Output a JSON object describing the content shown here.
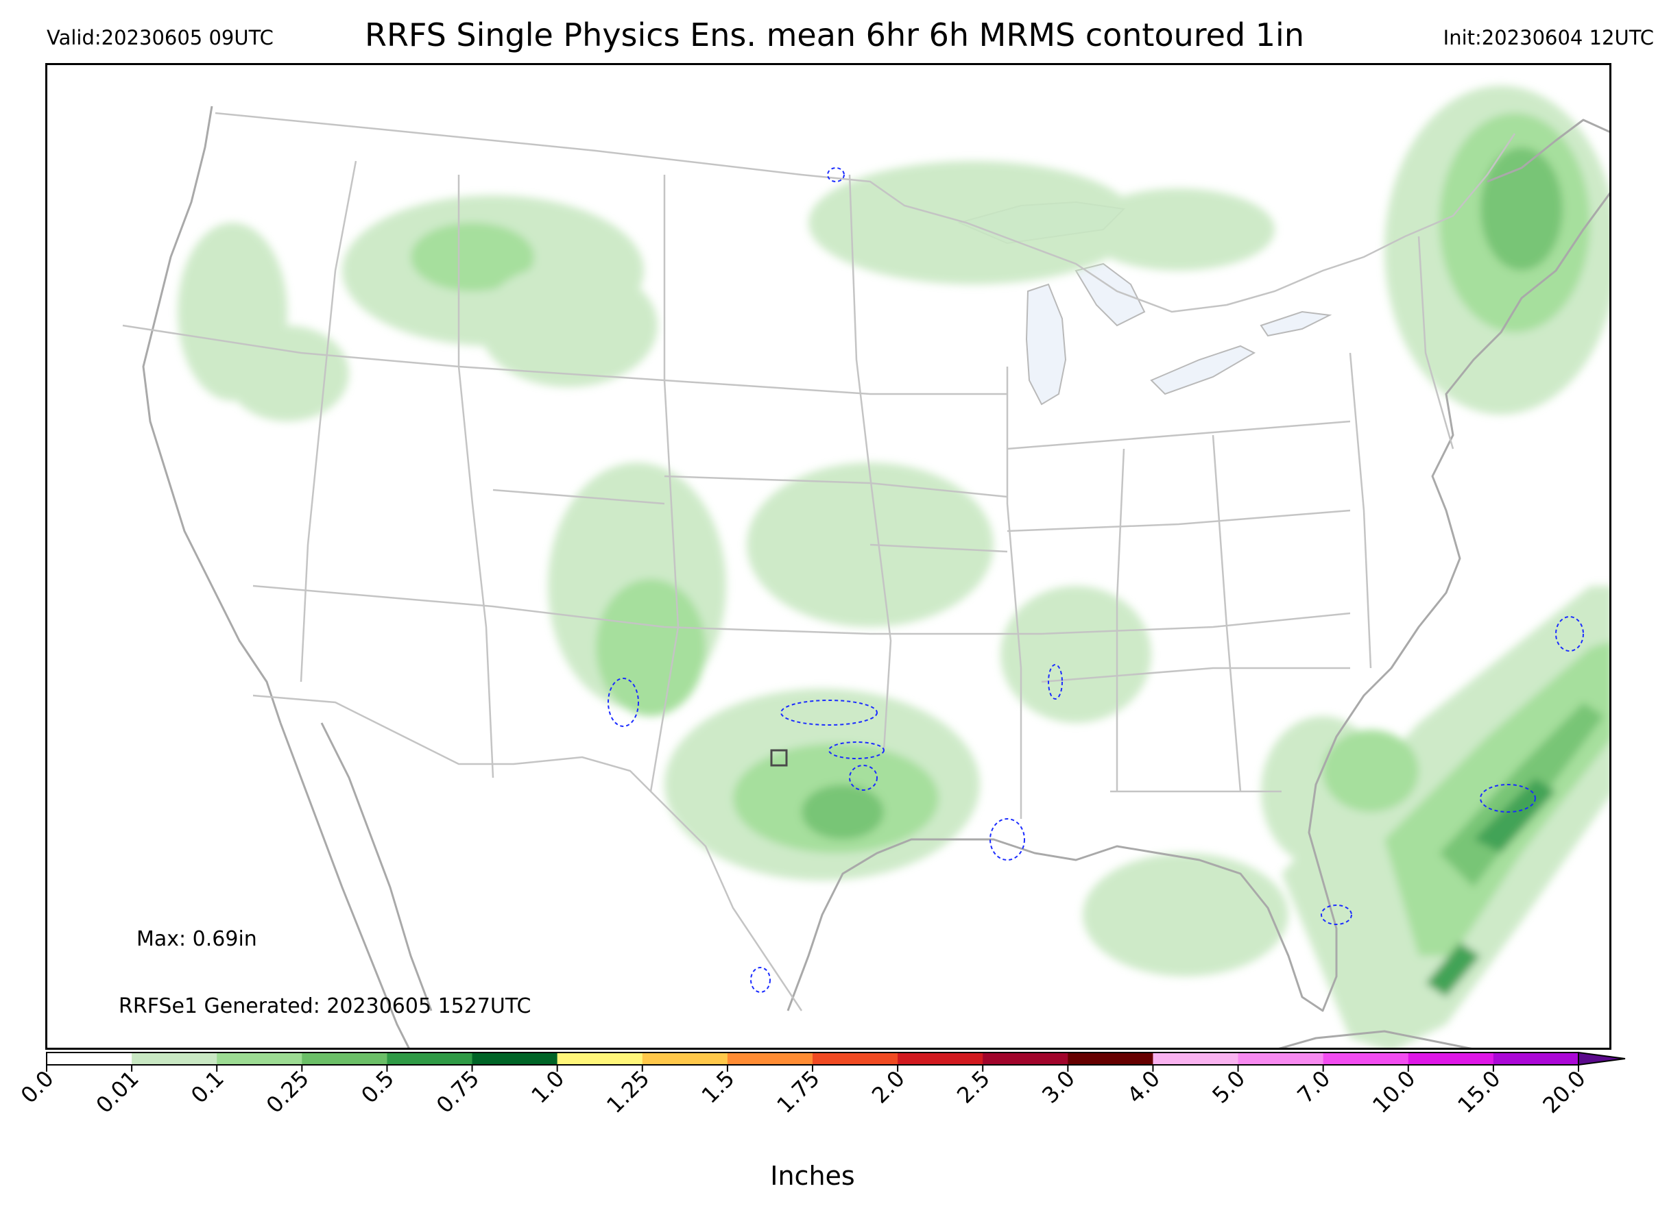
{
  "header": {
    "valid_label": "Valid:20230605 09UTC",
    "title": "RRFS Single Physics Ens. mean 6hr 6h MRMS contoured 1in",
    "init_label": "Init:20230604 12UTC"
  },
  "annotations": {
    "max_label": "Max: 0.69in",
    "generated_label": "RRFSe1 Generated: 20230605 1527UTC"
  },
  "colorbar": {
    "title": "Inches",
    "ticks": [
      "0.0",
      "0.01",
      "0.1",
      "0.25",
      "0.5",
      "0.75",
      "1.0",
      "1.25",
      "1.5",
      "1.75",
      "2.0",
      "2.5",
      "3.0",
      "4.0",
      "5.0",
      "7.0",
      "10.0",
      "15.0",
      "20.0"
    ],
    "colors": [
      "#ffffff",
      "#c9e8c3",
      "#9ddc93",
      "#6bbf67",
      "#2f9a45",
      "#006426",
      "#fff67a",
      "#ffc84a",
      "#ff8c33",
      "#f04a22",
      "#d1191f",
      "#a1052b",
      "#660000",
      "#f9b3f0",
      "#f78af0",
      "#f24df0",
      "#de17e6",
      "#ab08d6"
    ],
    "extend_color": "#5b0a8c"
  },
  "map": {
    "type": "CONUS precipitation map",
    "colors": {
      "water": "#eef3fa",
      "border": "#b9b9b9",
      "coast": "#a9a9a9",
      "contour_1in": "#1a2bff",
      "highlight_box": "#4a4a4a"
    }
  }
}
